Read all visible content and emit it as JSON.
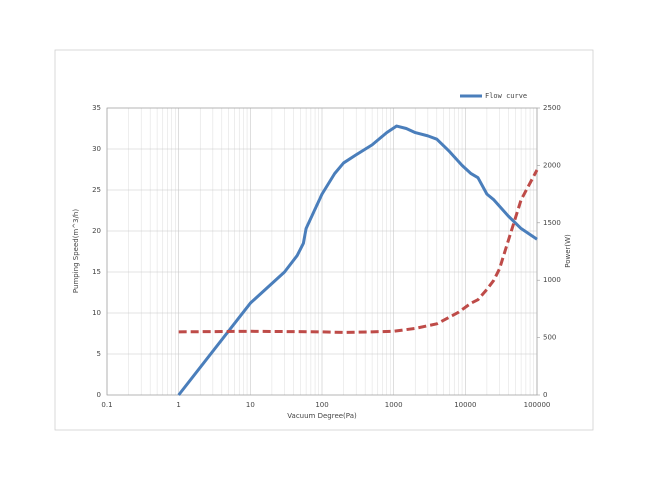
{
  "chart_data": {
    "type": "line",
    "xlabel": "Vacuum Degree(Pa)",
    "ylabel": "Pumping Speed(m^3/h)",
    "y2label": "Power(W)",
    "xscale": "log",
    "grid": true,
    "legend": "top-right",
    "xlim": [
      0.1,
      100000
    ],
    "xticks": [
      0.1,
      1,
      10,
      100,
      1000,
      10000,
      100000
    ],
    "ylim": [
      0,
      35
    ],
    "yticks": [
      0,
      5,
      10,
      15,
      20,
      25,
      30,
      35
    ],
    "y2lim": [
      0,
      2500
    ],
    "y2ticks": [
      0,
      500,
      1000,
      1500,
      2000,
      2500
    ],
    "series": [
      {
        "name": "Flow curve",
        "color": "#4a7ebb",
        "dash": false,
        "x": [
          1,
          10,
          30,
          45,
          55,
          60,
          100,
          150,
          200,
          300,
          500,
          800,
          1100,
          1500,
          2000,
          3000,
          4000,
          6000,
          9000,
          12000,
          15000,
          20000,
          25000,
          40000,
          60000,
          100000
        ],
        "values": [
          0,
          11.2,
          15,
          17,
          18.5,
          20.3,
          24.5,
          27,
          28.3,
          29.3,
          30.5,
          32,
          32.8,
          32.5,
          32,
          31.6,
          31.2,
          29.7,
          28,
          27,
          26.5,
          24.5,
          23.8,
          21.8,
          20.3,
          19
        ]
      },
      {
        "color": "#be4b48",
        "dash": true,
        "axis": "y2",
        "x": [
          1,
          10,
          100,
          200,
          500,
          1000,
          2000,
          4000,
          8000,
          12000,
          15000,
          20000,
          25000,
          30000,
          40000,
          60000,
          100000
        ],
        "values": [
          550,
          555,
          550,
          545,
          550,
          555,
          580,
          620,
          720,
          800,
          830,
          920,
          1000,
          1100,
          1350,
          1700,
          1960
        ]
      }
    ]
  }
}
